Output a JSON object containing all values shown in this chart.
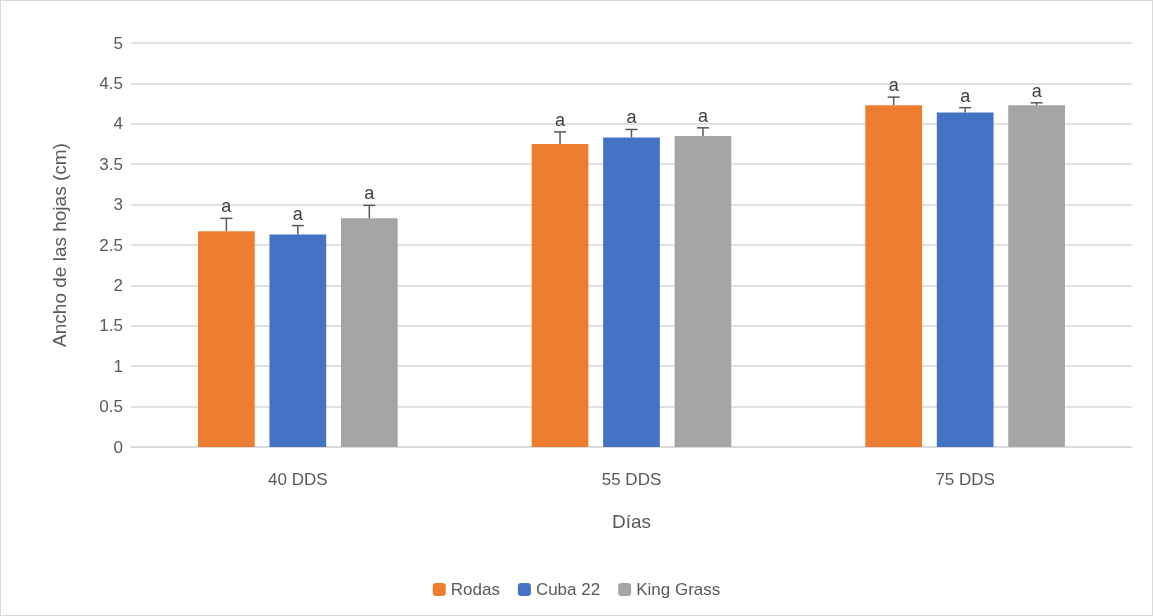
{
  "chart_data": {
    "type": "bar",
    "xlabel": "Días",
    "ylabel": "Ancho de las hojas (cm)",
    "categories": [
      "40 DDS",
      "55 DDS",
      "75 DDS"
    ],
    "series": [
      {
        "name": "Rodas",
        "color": "#ed7d31",
        "values": [
          2.67,
          3.75,
          4.23
        ],
        "errors": [
          [
            2.67,
            2.83
          ],
          [
            3.75,
            3.9
          ],
          [
            4.23,
            4.33
          ]
        ],
        "value_labels": [
          "a",
          "a",
          "a"
        ]
      },
      {
        "name": "Cuba 22",
        "color": "#4472c4",
        "values": [
          2.63,
          3.83,
          4.14
        ],
        "errors": [
          [
            2.63,
            2.74
          ],
          [
            3.83,
            3.93
          ],
          [
            4.14,
            4.2
          ]
        ],
        "value_labels": [
          "a",
          "a",
          "a"
        ]
      },
      {
        "name": "King Grass",
        "color": "#a5a5a5",
        "values": [
          2.83,
          3.85,
          4.23
        ],
        "errors": [
          [
            2.83,
            2.99
          ],
          [
            3.85,
            3.95
          ],
          [
            4.23,
            4.26
          ]
        ],
        "value_labels": [
          "a",
          "a",
          "a"
        ]
      }
    ],
    "ylim": [
      0,
      5
    ],
    "yticks": [
      0,
      0.5,
      1,
      1.5,
      2,
      2.5,
      3,
      3.5,
      4,
      4.5,
      5
    ],
    "grid": "y",
    "legend": "bottom"
  }
}
